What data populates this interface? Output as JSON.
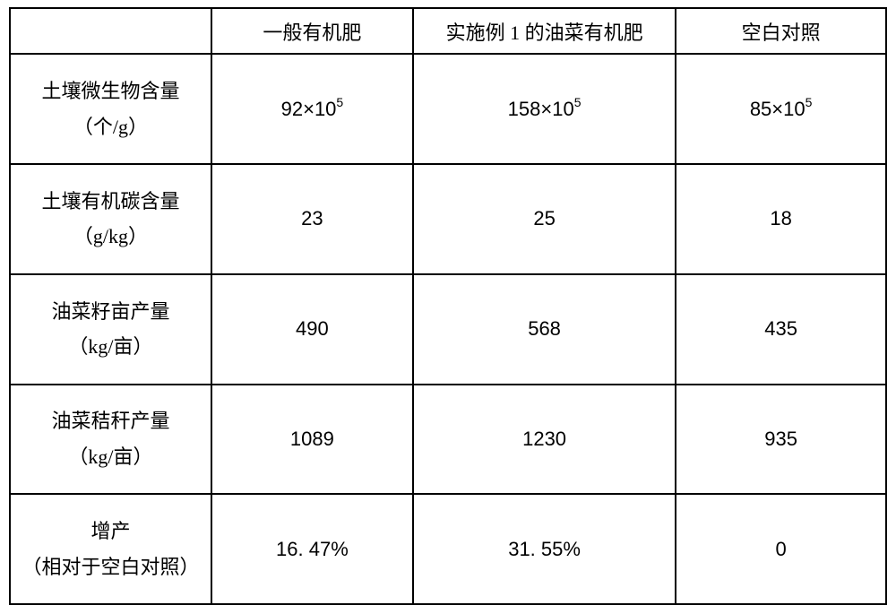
{
  "table": {
    "border_color": "#000000",
    "background_color": "#ffffff",
    "cell_font_family_cjk": "SimSun",
    "cell_font_family_latin": "Arial",
    "header_fontsize": 22,
    "label_fontsize": 22,
    "value_fontsize": 22,
    "sup_fontsize": 14,
    "column_widths_percent": [
      23,
      23,
      30,
      24
    ],
    "columns": [
      {
        "key": "label",
        "header": ""
      },
      {
        "key": "general",
        "header": "一般有机肥"
      },
      {
        "key": "example1",
        "header": "实施例 1 的油菜有机肥"
      },
      {
        "key": "blank",
        "header": "空白对照"
      }
    ],
    "rows": [
      {
        "label_line1": "土壤微生物含量",
        "label_line2": "（个/g）",
        "value_type": "sci",
        "general_mantissa": "92",
        "general_base": "10",
        "general_exp": "5",
        "example1_mantissa": "158",
        "example1_base": "10",
        "example1_exp": "5",
        "blank_mantissa": "85",
        "blank_base": "10",
        "blank_exp": "5"
      },
      {
        "label_line1": "土壤有机碳含量",
        "label_line2": "（g/kg）",
        "value_type": "plain",
        "general": "23",
        "example1": "25",
        "blank": "18"
      },
      {
        "label_line1": "油菜籽亩产量",
        "label_line2": "（kg/亩）",
        "value_type": "plain",
        "general": "490",
        "example1": "568",
        "blank": "435"
      },
      {
        "label_line1": "油菜秸秆产量",
        "label_line2": "（kg/亩）",
        "value_type": "plain",
        "general": "1089",
        "example1": "1230",
        "blank": "935"
      },
      {
        "label_line1": "增产",
        "label_line2": "（相对于空白对照）",
        "value_type": "plain",
        "general": "16. 47%",
        "example1": "31. 55%",
        "blank": "0"
      }
    ]
  }
}
